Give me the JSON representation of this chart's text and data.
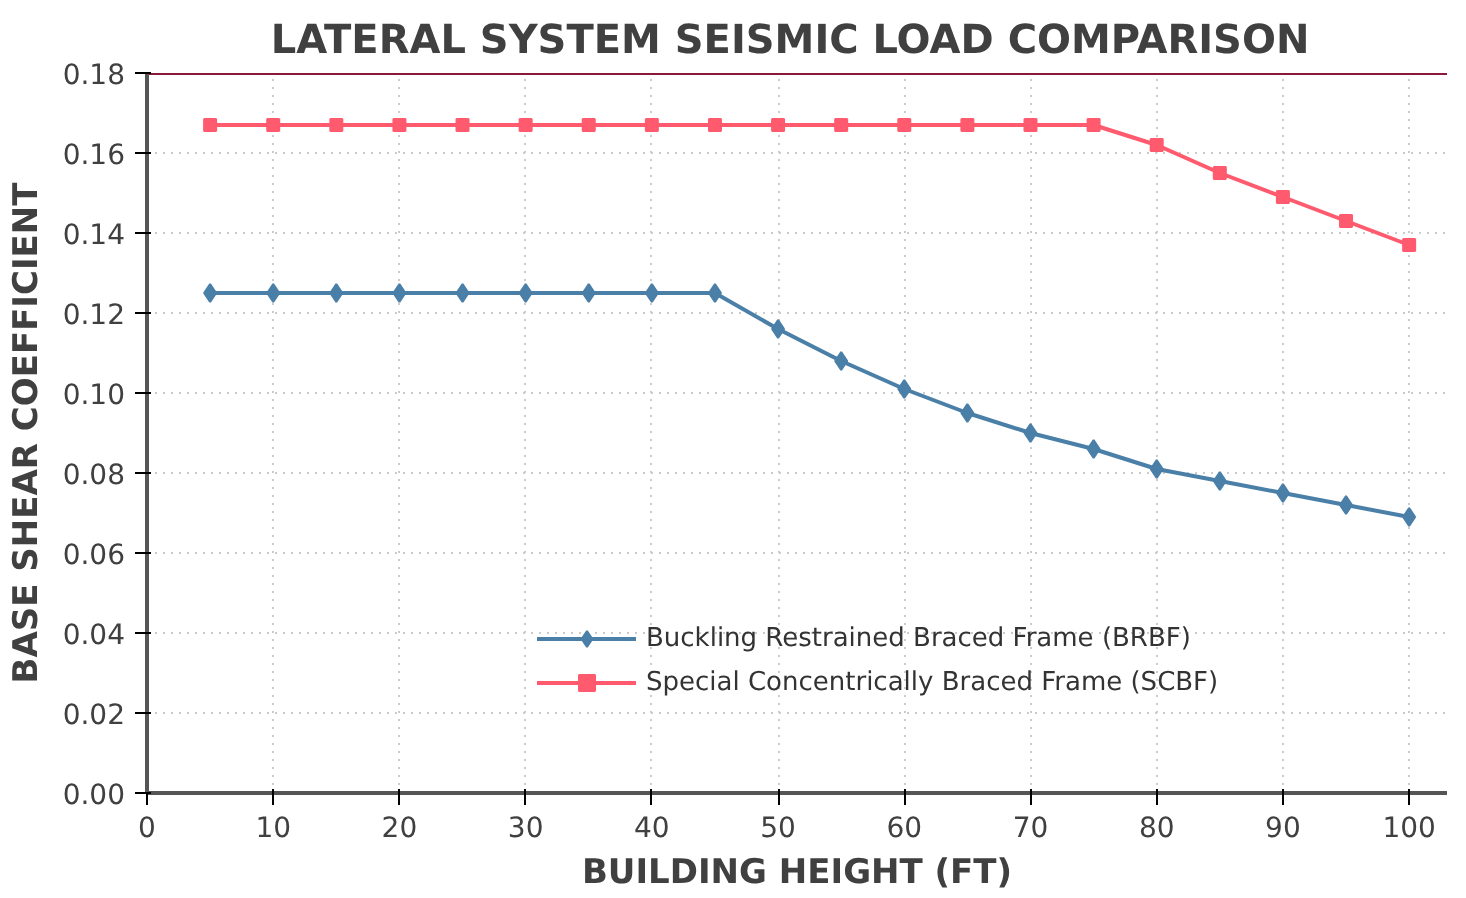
{
  "chart_data": {
    "type": "line",
    "title": "LATERAL SYSTEM  SEISMIC LOAD COMPARISON",
    "xlabel": "BUILDING HEIGHT (FT)",
    "ylabel": "BASE SHEAR COEFFICIENT",
    "x": [
      5,
      10,
      15,
      20,
      25,
      30,
      35,
      40,
      45,
      50,
      55,
      60,
      65,
      70,
      75,
      80,
      85,
      90,
      95,
      100
    ],
    "series": [
      {
        "name": "Buckling Restrained Braced Frame (BRBF)",
        "color": "#4a7fa8",
        "marker": "diamond",
        "values": [
          0.125,
          0.125,
          0.125,
          0.125,
          0.125,
          0.125,
          0.125,
          0.125,
          0.125,
          0.116,
          0.108,
          0.101,
          0.095,
          0.09,
          0.086,
          0.081,
          0.078,
          0.075,
          0.072,
          0.069
        ]
      },
      {
        "name": "Special Concentrically Braced Frame (SCBF)",
        "color": "#ff5a6e",
        "marker": "square",
        "values": [
          0.167,
          0.167,
          0.167,
          0.167,
          0.167,
          0.167,
          0.167,
          0.167,
          0.167,
          0.167,
          0.167,
          0.167,
          0.167,
          0.167,
          0.167,
          0.162,
          0.155,
          0.149,
          0.143,
          0.137
        ]
      }
    ],
    "xlim": [
      0,
      103
    ],
    "ylim": [
      0,
      0.18
    ],
    "xticks": [
      0,
      10,
      20,
      30,
      40,
      50,
      60,
      70,
      80,
      90,
      100
    ],
    "yticks": [
      {
        "value": 0,
        "label": "0.00"
      },
      {
        "value": 0.02,
        "label": "0.02"
      },
      {
        "value": 0.04,
        "label": "0.04"
      },
      {
        "value": 0.06,
        "label": "0.06"
      },
      {
        "value": 0.08,
        "label": "0.08"
      },
      {
        "value": 0.1,
        "label": "0.10"
      },
      {
        "value": 0.12,
        "label": "0.12"
      },
      {
        "value": 0.14,
        "label": "0.14"
      },
      {
        "value": 0.16,
        "label": "0.16"
      },
      {
        "value": 0.18,
        "label": "0.18"
      }
    ],
    "grid": true,
    "legend": "bottom",
    "line_style": "solid"
  }
}
